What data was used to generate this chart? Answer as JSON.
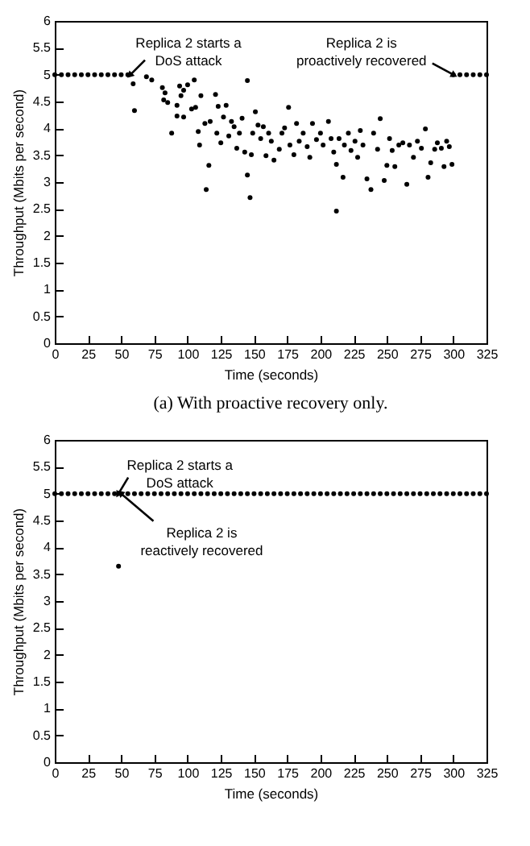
{
  "chart_data": [
    {
      "type": "scatter",
      "xlabel": "Time (seconds)",
      "ylabel": "Throughput (Mbits per second)",
      "marker": "circle",
      "xlim": [
        0,
        325
      ],
      "ylim": [
        0,
        6
      ],
      "xticks": [
        0,
        25,
        50,
        75,
        100,
        125,
        150,
        175,
        200,
        225,
        250,
        275,
        300,
        325
      ],
      "yticks": [
        0,
        0.5,
        1,
        1.5,
        2,
        2.5,
        3,
        3.5,
        4,
        4.5,
        5,
        5.5,
        6
      ],
      "series": [
        {
          "color": "#000000",
          "x": [
            0,
            5,
            10,
            15,
            20,
            25,
            30,
            35,
            40,
            45,
            50,
            55,
            59,
            60,
            69,
            73,
            81,
            83,
            82,
            85,
            88,
            92,
            94,
            95,
            97,
            92,
            97,
            100,
            103,
            105,
            106,
            108,
            110,
            109,
            113,
            114,
            116,
            117,
            121,
            123,
            122,
            125,
            127,
            129,
            131,
            133,
            135,
            137,
            139,
            141,
            143,
            145,
            145,
            147,
            148,
            149,
            151,
            153,
            155,
            157,
            159,
            161,
            163,
            165,
            169,
            171,
            173,
            176,
            177,
            180,
            182,
            184,
            187,
            190,
            192,
            194,
            197,
            200,
            202,
            206,
            208,
            210,
            212,
            212,
            214,
            217,
            218,
            221,
            223,
            226,
            228,
            230,
            232,
            235,
            238,
            240,
            243,
            245,
            248,
            250,
            252,
            254,
            256,
            259,
            262,
            265,
            267,
            270,
            273,
            276,
            279,
            281,
            283,
            286,
            288,
            291,
            293,
            295,
            297,
            299,
            300,
            305,
            310,
            315,
            320,
            325
          ],
          "values": [
            5,
            5,
            5,
            5,
            5,
            5,
            5,
            5,
            5,
            5,
            5,
            5,
            4.83,
            4.33,
            4.96,
            4.9,
            4.76,
            4.66,
            4.53,
            4.48,
            3.91,
            4.43,
            4.79,
            4.61,
            4.71,
            4.23,
            4.21,
            4.81,
            4.36,
            4.9,
            4.39,
            3.94,
            4.61,
            3.69,
            4.09,
            2.86,
            3.31,
            4.13,
            4.63,
            4.41,
            3.91,
            3.73,
            4.21,
            4.43,
            3.86,
            4.13,
            4.03,
            3.63,
            3.91,
            4.19,
            3.56,
            4.89,
            3.13,
            2.71,
            3.51,
            3.91,
            4.31,
            4.06,
            3.81,
            4.03,
            3.49,
            3.91,
            3.76,
            3.41,
            3.61,
            3.91,
            4.01,
            4.39,
            3.69,
            3.51,
            4.09,
            3.76,
            3.91,
            3.66,
            3.46,
            4.09,
            3.79,
            3.91,
            3.69,
            4.13,
            3.81,
            3.56,
            3.33,
            2.46,
            3.81,
            3.09,
            3.69,
            3.91,
            3.59,
            3.76,
            3.46,
            3.96,
            3.69,
            3.06,
            2.86,
            3.91,
            3.61,
            4.18,
            3.03,
            3.31,
            3.81,
            3.59,
            3.29,
            3.69,
            3.73,
            2.96,
            3.69,
            3.46,
            3.76,
            3.63,
            3.99,
            3.09,
            3.36,
            3.61,
            3.73,
            3.63,
            3.29,
            3.76,
            3.66,
            3.33,
            5,
            5,
            5,
            5,
            5,
            5
          ]
        }
      ],
      "annotations": [
        {
          "text": "Replica 2 starts a\nDoS attack",
          "x": 57,
          "y": 5
        },
        {
          "text": "Replica 2 is\nproactively recovered",
          "x": 300,
          "y": 5
        },
        "(a)  With proactive recovery only."
      ]
    },
    {
      "type": "scatter",
      "xlabel": "Time (seconds)",
      "ylabel": "Throughput (Mbits per second)",
      "marker": "circle",
      "xlim": [
        0,
        325
      ],
      "ylim": [
        0,
        6
      ],
      "xticks": [
        0,
        25,
        50,
        75,
        100,
        125,
        150,
        175,
        200,
        225,
        250,
        275,
        300,
        325
      ],
      "yticks": [
        0,
        0.5,
        1,
        1.5,
        2,
        2.5,
        3,
        3.5,
        4,
        4.5,
        5,
        5.5,
        6
      ],
      "series": [
        {
          "color": "#000000",
          "x": [
            0,
            5,
            10,
            15,
            20,
            25,
            30,
            35,
            40,
            45,
            48,
            50,
            55,
            60,
            65,
            70,
            75,
            80,
            85,
            90,
            95,
            100,
            105,
            110,
            115,
            120,
            125,
            130,
            135,
            140,
            145,
            150,
            155,
            160,
            165,
            170,
            175,
            180,
            185,
            190,
            195,
            200,
            205,
            210,
            215,
            220,
            225,
            230,
            235,
            240,
            245,
            250,
            255,
            260,
            265,
            270,
            275,
            280,
            285,
            290,
            295,
            300,
            305,
            310,
            315,
            320,
            325
          ],
          "values": [
            5,
            5,
            5,
            5,
            5,
            5,
            5,
            5,
            5,
            5,
            3.65,
            5,
            5,
            5,
            5,
            5,
            5,
            5,
            5,
            5,
            5,
            5,
            5,
            5,
            5,
            5,
            5,
            5,
            5,
            5,
            5,
            5,
            5,
            5,
            5,
            5,
            5,
            5,
            5,
            5,
            5,
            5,
            5,
            5,
            5,
            5,
            5,
            5,
            5,
            5,
            5,
            5,
            5,
            5,
            5,
            5,
            5,
            5,
            5,
            5,
            5,
            5,
            5,
            5,
            5,
            5,
            5
          ]
        }
      ],
      "annotations": [
        {
          "text": "Replica 2 starts a\nDoS attack",
          "x": 48,
          "y": 5
        },
        {
          "text": "Replica 2 is\nreactively recovered",
          "x": 50,
          "y": 5
        }
      ]
    }
  ]
}
